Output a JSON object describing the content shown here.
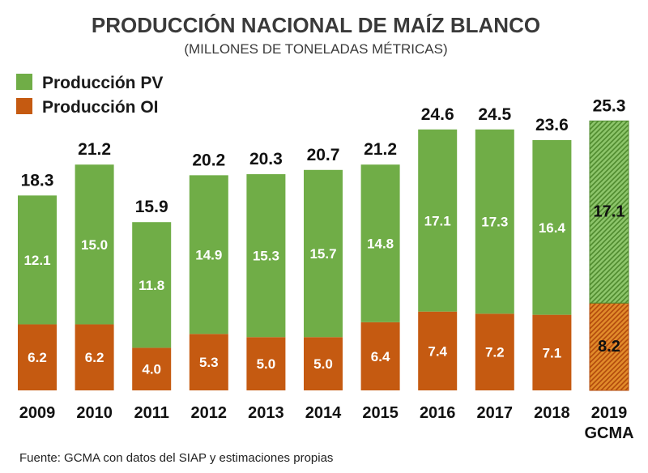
{
  "chart_data": {
    "type": "bar",
    "stacked": true,
    "title": "PRODUCCIÓN NACIONAL DE MAÍZ BLANCO",
    "subtitle": "(MILLONES DE TONELADAS MÉTRICAS)",
    "categories": [
      "2009",
      "2010",
      "2011",
      "2012",
      "2013",
      "2014",
      "2015",
      "2016",
      "2017",
      "2018",
      "2019"
    ],
    "category_sublabels": [
      "",
      "",
      "",
      "",
      "",
      "",
      "",
      "",
      "",
      "",
      "GCMA"
    ],
    "series": [
      {
        "name": "Producción OI",
        "color": "#c55a11",
        "values": [
          6.2,
          6.2,
          4.0,
          5.3,
          5.0,
          5.0,
          6.4,
          7.4,
          7.2,
          7.1,
          8.2
        ]
      },
      {
        "name": "Producción PV",
        "color": "#70ad47",
        "values": [
          12.1,
          15.0,
          11.8,
          14.9,
          15.3,
          15.7,
          14.8,
          17.1,
          17.3,
          16.4,
          17.1
        ]
      }
    ],
    "totals": [
      18.3,
      21.2,
      15.9,
      20.2,
      20.3,
      20.7,
      21.2,
      24.6,
      24.5,
      23.6,
      25.3
    ],
    "estimated_categories": [
      "2019"
    ],
    "ylim": [
      0,
      30
    ],
    "legend_position": "top-left",
    "grid": false
  },
  "legend": [
    {
      "label": "Producción PV",
      "color": "#70ad47"
    },
    {
      "label": "Producción OI",
      "color": "#c55a11"
    }
  ],
  "source": "Fuente: GCMA con datos del SIAP y estimaciones propias"
}
